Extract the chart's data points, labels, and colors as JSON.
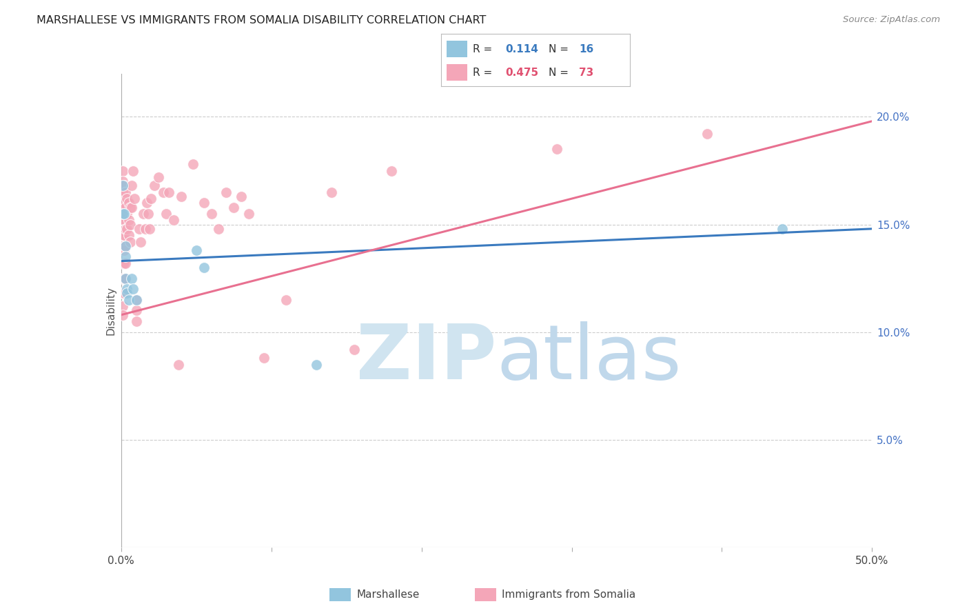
{
  "title": "MARSHALLESE VS IMMIGRANTS FROM SOMALIA DISABILITY CORRELATION CHART",
  "source": "Source: ZipAtlas.com",
  "ylabel": "Disability",
  "xmin": 0.0,
  "xmax": 0.5,
  "ymin": 0.0,
  "ymax": 0.22,
  "yticks": [
    0.0,
    0.05,
    0.1,
    0.15,
    0.2
  ],
  "ytick_labels": [
    "",
    "5.0%",
    "10.0%",
    "15.0%",
    "20.0%"
  ],
  "blue_color": "#92c5de",
  "pink_color": "#f4a6b8",
  "blue_line_color": "#3a7abf",
  "pink_line_color": "#e87090",
  "watermark_zip_color": "#d0e4f0",
  "watermark_atlas_color": "#c0d8eb",
  "blue_line_x0": 0.0,
  "blue_line_y0": 0.133,
  "blue_line_x1": 0.5,
  "blue_line_y1": 0.148,
  "pink_line_x0": 0.0,
  "pink_line_y0": 0.108,
  "pink_line_x1": 0.5,
  "pink_line_y1": 0.198,
  "marshallese_x": [
    0.001,
    0.001,
    0.002,
    0.003,
    0.003,
    0.003,
    0.004,
    0.004,
    0.005,
    0.007,
    0.008,
    0.01,
    0.05,
    0.055,
    0.13,
    0.44
  ],
  "marshallese_y": [
    0.168,
    0.155,
    0.155,
    0.14,
    0.135,
    0.125,
    0.12,
    0.118,
    0.115,
    0.125,
    0.12,
    0.115,
    0.138,
    0.13,
    0.085,
    0.148
  ],
  "somalia_x": [
    0.001,
    0.001,
    0.001,
    0.001,
    0.001,
    0.001,
    0.001,
    0.001,
    0.001,
    0.001,
    0.001,
    0.001,
    0.002,
    0.002,
    0.002,
    0.002,
    0.002,
    0.002,
    0.002,
    0.002,
    0.003,
    0.003,
    0.003,
    0.003,
    0.003,
    0.003,
    0.004,
    0.004,
    0.004,
    0.005,
    0.005,
    0.005,
    0.006,
    0.006,
    0.006,
    0.007,
    0.007,
    0.008,
    0.009,
    0.01,
    0.01,
    0.01,
    0.012,
    0.013,
    0.015,
    0.016,
    0.017,
    0.018,
    0.019,
    0.02,
    0.022,
    0.025,
    0.028,
    0.03,
    0.032,
    0.035,
    0.038,
    0.04,
    0.048,
    0.055,
    0.06,
    0.065,
    0.07,
    0.075,
    0.08,
    0.085,
    0.095,
    0.11,
    0.14,
    0.155,
    0.18,
    0.29,
    0.39
  ],
  "somalia_y": [
    0.175,
    0.17,
    0.165,
    0.158,
    0.152,
    0.145,
    0.14,
    0.132,
    0.125,
    0.118,
    0.112,
    0.108,
    0.168,
    0.16,
    0.152,
    0.145,
    0.138,
    0.132,
    0.125,
    0.118,
    0.165,
    0.158,
    0.148,
    0.14,
    0.132,
    0.125,
    0.162,
    0.155,
    0.148,
    0.16,
    0.152,
    0.145,
    0.158,
    0.15,
    0.142,
    0.168,
    0.158,
    0.175,
    0.162,
    0.115,
    0.11,
    0.105,
    0.148,
    0.142,
    0.155,
    0.148,
    0.16,
    0.155,
    0.148,
    0.162,
    0.168,
    0.172,
    0.165,
    0.155,
    0.165,
    0.152,
    0.085,
    0.163,
    0.178,
    0.16,
    0.155,
    0.148,
    0.165,
    0.158,
    0.163,
    0.155,
    0.088,
    0.115,
    0.165,
    0.092,
    0.175,
    0.185,
    0.192
  ]
}
